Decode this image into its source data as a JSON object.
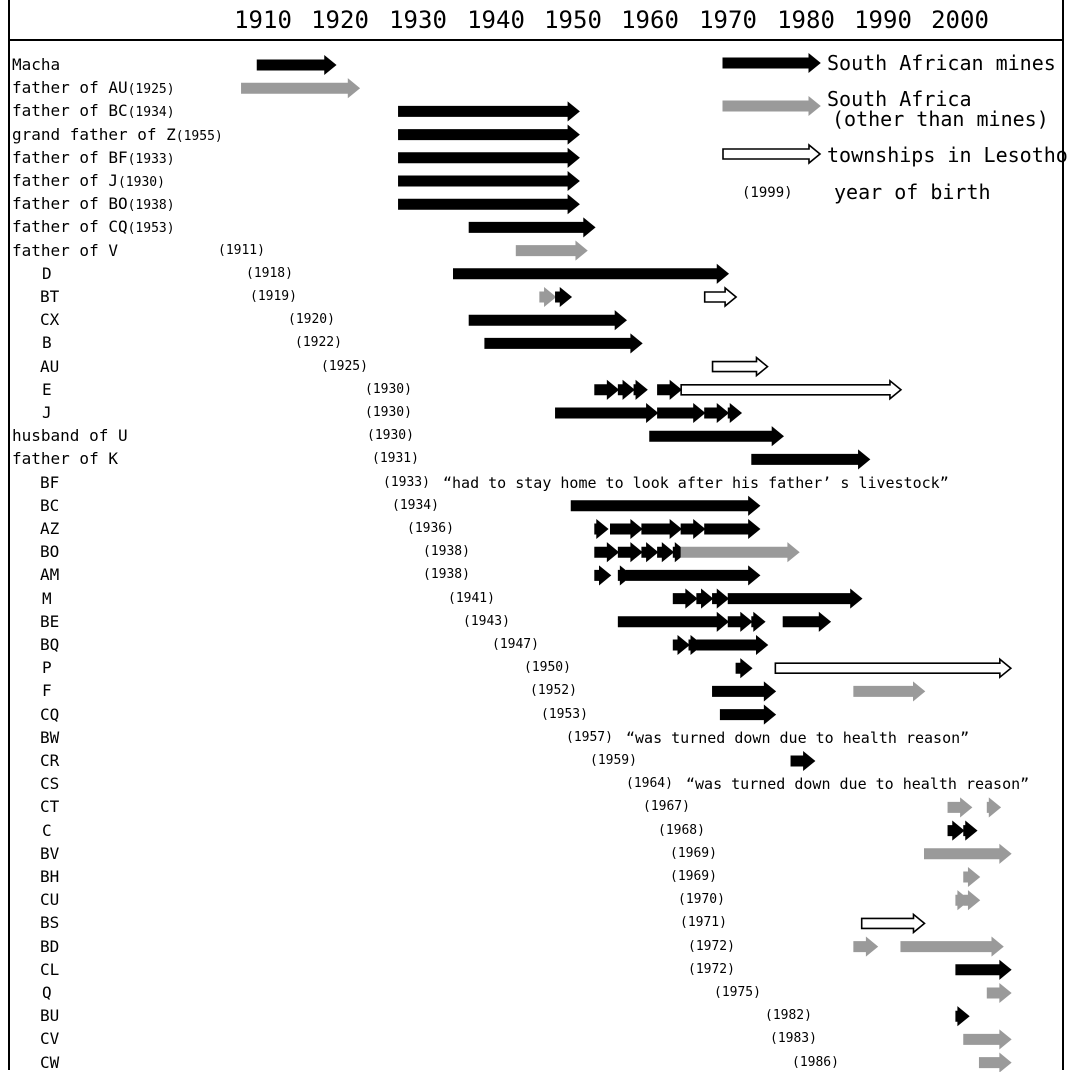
{
  "chart_data": {
    "type": "timeline",
    "decades": [
      "1910",
      "1920",
      "1930",
      "1940",
      "1950",
      "1960",
      "1970",
      "1980",
      "1990",
      "2000"
    ],
    "legend": {
      "mines": "South African mines",
      "sa_line1": "South Africa",
      "sa_line2": "(other than mines)",
      "lesotho": "townships in Lesotho",
      "year_example": "(1999)",
      "year_label": "year of birth"
    },
    "colors": {
      "mines": "#000000",
      "sa": "#9a9a9a",
      "lesotho": "#ffffff"
    },
    "rows": [
      {
        "label": "Macha",
        "birth": "",
        "quote": "",
        "spans": [
          {
            "t": "mines",
            "s": 1913,
            "e": 1923
          }
        ]
      },
      {
        "label": "father of AU",
        "lsmall": "(1925)",
        "birth": "",
        "quote": "",
        "spans": [
          {
            "t": "sa",
            "s": 1911,
            "e": 1926
          }
        ]
      },
      {
        "label": "father of BC",
        "lsmall": "(1934)",
        "birth": "",
        "quote": "",
        "spans": [
          {
            "t": "mines",
            "s": 1931,
            "e": 1954
          }
        ]
      },
      {
        "label": "grand father of Z",
        "lsmall": "(1955)",
        "birth": "",
        "quote": "",
        "spans": [
          {
            "t": "mines",
            "s": 1931,
            "e": 1954
          }
        ]
      },
      {
        "label": "father of BF",
        "lsmall": "(1933)",
        "birth": "",
        "quote": "",
        "spans": [
          {
            "t": "mines",
            "s": 1931,
            "e": 1954
          }
        ]
      },
      {
        "label": "father of J",
        "lsmall": "(1930)",
        "birth": "",
        "quote": "",
        "spans": [
          {
            "t": "mines",
            "s": 1931,
            "e": 1954
          }
        ]
      },
      {
        "label": "father of BO",
        "lsmall": "(1938)",
        "birth": "",
        "quote": "",
        "spans": [
          {
            "t": "mines",
            "s": 1931,
            "e": 1954
          }
        ]
      },
      {
        "label": "father of CQ",
        "lsmall": "(1953)",
        "birth": "",
        "quote": "",
        "spans": [
          {
            "t": "mines",
            "s": 1940,
            "e": 1956
          }
        ]
      },
      {
        "label": "father of V",
        "birth": "(1911)",
        "quote": "",
        "spans": [
          {
            "t": "sa",
            "s": 1946,
            "e": 1955
          }
        ]
      },
      {
        "label": "D",
        "birth": "(1918)",
        "quote": "",
        "spans": [
          {
            "t": "mines",
            "s": 1938,
            "e": 1973
          }
        ]
      },
      {
        "label": "BT",
        "birth": "(1919)",
        "quote": "",
        "spans": [
          {
            "t": "sa",
            "s": 1949,
            "e": 1951
          },
          {
            "t": "mines",
            "s": 1951,
            "e": 1953
          },
          {
            "t": "lesotho",
            "s": 1970,
            "e": 1974
          }
        ]
      },
      {
        "label": "CX",
        "birth": "(1920)",
        "quote": "",
        "spans": [
          {
            "t": "mines",
            "s": 1940,
            "e": 1960
          }
        ]
      },
      {
        "label": "B",
        "birth": "(1922)",
        "quote": "",
        "spans": [
          {
            "t": "mines",
            "s": 1942,
            "e": 1962
          }
        ]
      },
      {
        "label": "AU",
        "birth": "(1925)",
        "quote": "",
        "spans": [
          {
            "t": "lesotho",
            "s": 1971,
            "e": 1978
          }
        ]
      },
      {
        "label": "E",
        "birth": "(1930)",
        "quote": "",
        "spans": [
          {
            "t": "mines",
            "s": 1956,
            "e": 1959
          },
          {
            "t": "mines",
            "s": 1959,
            "e": 1961
          },
          {
            "t": "mines",
            "s": 1961,
            "e": 1962
          },
          {
            "t": "mines",
            "s": 1964,
            "e": 1967
          },
          {
            "t": "lesotho",
            "s": 1967,
            "e": 1995
          }
        ]
      },
      {
        "label": "J",
        "birth": "(1930)",
        "quote": "",
        "spans": [
          {
            "t": "mines",
            "s": 1951,
            "e": 1964
          },
          {
            "t": "mines",
            "s": 1964,
            "e": 1970
          },
          {
            "t": "mines",
            "s": 1970,
            "e": 1973
          },
          {
            "t": "mines",
            "s": 1973,
            "e": 1974
          }
        ]
      },
      {
        "label": "husband of U",
        "birth": "(1930)",
        "quote": "",
        "spans": [
          {
            "t": "mines",
            "s": 1963,
            "e": 1980
          }
        ]
      },
      {
        "label": "father of K",
        "birth": "(1931)",
        "quote": "",
        "spans": [
          {
            "t": "mines",
            "s": 1976,
            "e": 1991
          }
        ]
      },
      {
        "label": "BF",
        "birth": "(1933)",
        "quote": "“had to stay home to look after his father’ s livestock”",
        "spans": []
      },
      {
        "label": "BC",
        "birth": "(1934)",
        "quote": "",
        "spans": [
          {
            "t": "mines",
            "s": 1953,
            "e": 1977
          }
        ]
      },
      {
        "label": "AZ",
        "birth": "(1936)",
        "quote": "",
        "spans": [
          {
            "t": "mines",
            "s": 1956,
            "e": 1957
          },
          {
            "t": "mines",
            "s": 1958,
            "e": 1962
          },
          {
            "t": "mines",
            "s": 1962,
            "e": 1967
          },
          {
            "t": "mines",
            "s": 1967,
            "e": 1970
          },
          {
            "t": "mines",
            "s": 1970,
            "e": 1977
          }
        ]
      },
      {
        "label": "BO",
        "birth": "(1938)",
        "quote": "",
        "spans": [
          {
            "t": "mines",
            "s": 1956,
            "e": 1959
          },
          {
            "t": "mines",
            "s": 1959,
            "e": 1962
          },
          {
            "t": "mines",
            "s": 1962,
            "e": 1964
          },
          {
            "t": "mines",
            "s": 1964,
            "e": 1966
          },
          {
            "t": "mines",
            "s": 1966,
            "e": 1967
          },
          {
            "t": "sa",
            "s": 1967,
            "e": 1982
          }
        ]
      },
      {
        "label": "AM",
        "birth": "(1938)",
        "quote": "",
        "spans": [
          {
            "t": "mines",
            "s": 1956,
            "e": 1958
          },
          {
            "t": "mines",
            "s": 1959,
            "e": 1960
          },
          {
            "t": "mines",
            "s": 1960,
            "e": 1977
          }
        ]
      },
      {
        "label": "M",
        "birth": "(1941)",
        "quote": "",
        "spans": [
          {
            "t": "mines",
            "s": 1966,
            "e": 1969
          },
          {
            "t": "mines",
            "s": 1969,
            "e": 1971
          },
          {
            "t": "mines",
            "s": 1971,
            "e": 1973
          },
          {
            "t": "mines",
            "s": 1973,
            "e": 1990
          }
        ]
      },
      {
        "label": "BE",
        "birth": "(1943)",
        "quote": "",
        "spans": [
          {
            "t": "mines",
            "s": 1959,
            "e": 1973
          },
          {
            "t": "mines",
            "s": 1973,
            "e": 1976
          },
          {
            "t": "mines",
            "s": 1976,
            "e": 1977
          },
          {
            "t": "mines",
            "s": 1980,
            "e": 1986
          }
        ]
      },
      {
        "label": "BQ",
        "birth": "(1947)",
        "quote": "",
        "spans": [
          {
            "t": "mines",
            "s": 1966,
            "e": 1968
          },
          {
            "t": "mines",
            "s": 1968,
            "e": 1969
          },
          {
            "t": "mines",
            "s": 1969,
            "e": 1978
          }
        ]
      },
      {
        "label": "P",
        "birth": "(1950)",
        "quote": "",
        "spans": [
          {
            "t": "mines",
            "s": 1974,
            "e": 1976
          },
          {
            "t": "lesotho",
            "s": 1979,
            "e": 2009
          }
        ]
      },
      {
        "label": "F",
        "birth": "(1952)",
        "quote": "",
        "spans": [
          {
            "t": "mines",
            "s": 1971,
            "e": 1979
          },
          {
            "t": "sa",
            "s": 1989,
            "e": 1998
          }
        ]
      },
      {
        "label": "CQ",
        "birth": "(1953)",
        "quote": "",
        "spans": [
          {
            "t": "mines",
            "s": 1972,
            "e": 1979
          }
        ]
      },
      {
        "label": "BW",
        "birth": "(1957)",
        "quote": "“was turned down due to health reason”",
        "spans": []
      },
      {
        "label": "CR",
        "birth": "(1959)",
        "quote": "",
        "spans": [
          {
            "t": "mines",
            "s": 1981,
            "e": 1984
          }
        ]
      },
      {
        "label": "CS",
        "birth": "(1964)",
        "quote": "“was turned down due to health reason”",
        "spans": []
      },
      {
        "label": "CT",
        "birth": "(1967)",
        "quote": "",
        "spans": [
          {
            "t": "sa",
            "s": 2001,
            "e": 2004
          },
          {
            "t": "sa",
            "s": 2006,
            "e": 2007
          }
        ]
      },
      {
        "label": "C",
        "birth": "(1968)",
        "quote": "",
        "spans": [
          {
            "t": "mines",
            "s": 2001,
            "e": 2003
          },
          {
            "t": "mines",
            "s": 2003,
            "e": 2004
          }
        ]
      },
      {
        "label": "BV",
        "birth": "(1969)",
        "quote": "",
        "spans": [
          {
            "t": "sa",
            "s": 1998,
            "e": 2009
          }
        ]
      },
      {
        "label": "BH",
        "birth": "(1969)",
        "quote": "",
        "spans": [
          {
            "t": "sa",
            "s": 2003,
            "e": 2005
          }
        ]
      },
      {
        "label": "CU",
        "birth": "(1970)",
        "quote": "",
        "spans": [
          {
            "t": "sa",
            "s": 2002,
            "e": 2003
          },
          {
            "t": "sa",
            "s": 2003,
            "e": 2005
          }
        ]
      },
      {
        "label": "BS",
        "birth": "(1971)",
        "quote": "",
        "spans": [
          {
            "t": "lesotho",
            "s": 1990,
            "e": 1998
          }
        ]
      },
      {
        "label": "BD",
        "birth": "(1972)",
        "quote": "",
        "spans": [
          {
            "t": "sa",
            "s": 1989,
            "e": 1992
          },
          {
            "t": "sa",
            "s": 1995,
            "e": 2008
          }
        ]
      },
      {
        "label": "CL",
        "birth": "(1972)",
        "quote": "",
        "spans": [
          {
            "t": "mines",
            "s": 2002,
            "e": 2009
          }
        ]
      },
      {
        "label": "Q",
        "birth": "(1975)",
        "quote": "",
        "spans": [
          {
            "t": "sa",
            "s": 2006,
            "e": 2009
          }
        ]
      },
      {
        "label": "BU",
        "birth": "(1982)",
        "quote": "",
        "spans": [
          {
            "t": "mines",
            "s": 2002,
            "e": 2003
          }
        ]
      },
      {
        "label": "CV",
        "birth": "(1983)",
        "quote": "",
        "spans": [
          {
            "t": "sa",
            "s": 2003,
            "e": 2009
          }
        ]
      },
      {
        "label": "CW",
        "birth": "(1986)",
        "quote": "",
        "spans": [
          {
            "t": "sa",
            "s": 2005,
            "e": 2009
          }
        ]
      }
    ]
  }
}
